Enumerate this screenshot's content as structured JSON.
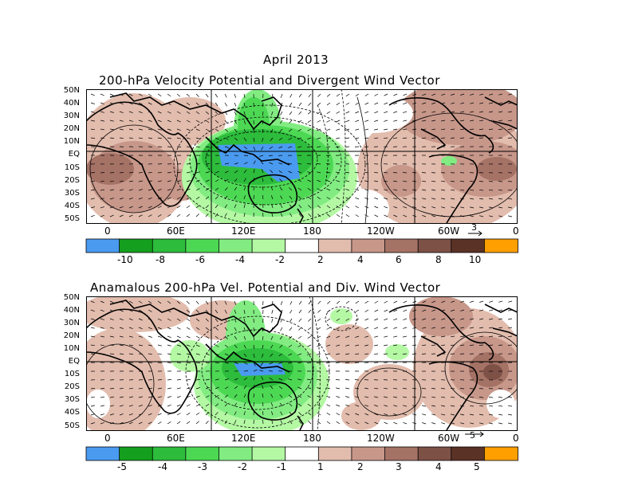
{
  "header": {
    "month_title": "April 2013",
    "panel1_title": "200-hPa Velocity Potential and Divergent Wind Vector",
    "panel2_title": "Anamalous 200-hPa Vel. Potential and Div. Wind Vector"
  },
  "axes": {
    "lat_labels": [
      "50N",
      "40N",
      "30N",
      "20N",
      "10N",
      "EQ",
      "10S",
      "20S",
      "30S",
      "40S",
      "50S"
    ],
    "lon_labels": [
      "0",
      "60E",
      "120E",
      "180",
      "120W",
      "60W",
      "0"
    ]
  },
  "panel1": {
    "vector_ref": "3",
    "colorbar": {
      "labels": [
        "-10",
        "-8",
        "-6",
        "-4",
        "-2",
        "2",
        "4",
        "6",
        "8",
        "10"
      ],
      "colors": [
        "#4a9bf0",
        "#14a01e",
        "#2dbc3c",
        "#4dd854",
        "#82ec82",
        "#b4f8a4",
        "#ffffff",
        "#e2bcad",
        "#c7978a",
        "#a57266",
        "#7d5146",
        "#5a3226",
        "#ff9f00"
      ]
    }
  },
  "panel2": {
    "vector_ref": "5",
    "colorbar": {
      "labels": [
        "-5",
        "-4",
        "-3",
        "-2",
        "-1",
        "1",
        "2",
        "3",
        "4",
        "5"
      ],
      "colors": [
        "#4a9bf0",
        "#14a01e",
        "#2dbc3c",
        "#4dd854",
        "#82ec82",
        "#b4f8a4",
        "#ffffff",
        "#e2bcad",
        "#c7978a",
        "#a57266",
        "#7d5146",
        "#5a3226",
        "#ff9f00"
      ]
    }
  },
  "palette": {
    "blue": "#4a9bf0",
    "green_dark": "#2dbc3c",
    "green_mid": "#4dd854",
    "green_light": "#82ec82",
    "green_pale": "#b4f8a4",
    "brown_pale": "#e2bcad",
    "brown_light": "#c7978a",
    "brown_mid": "#a57266",
    "brown_dark": "#7d5146"
  }
}
